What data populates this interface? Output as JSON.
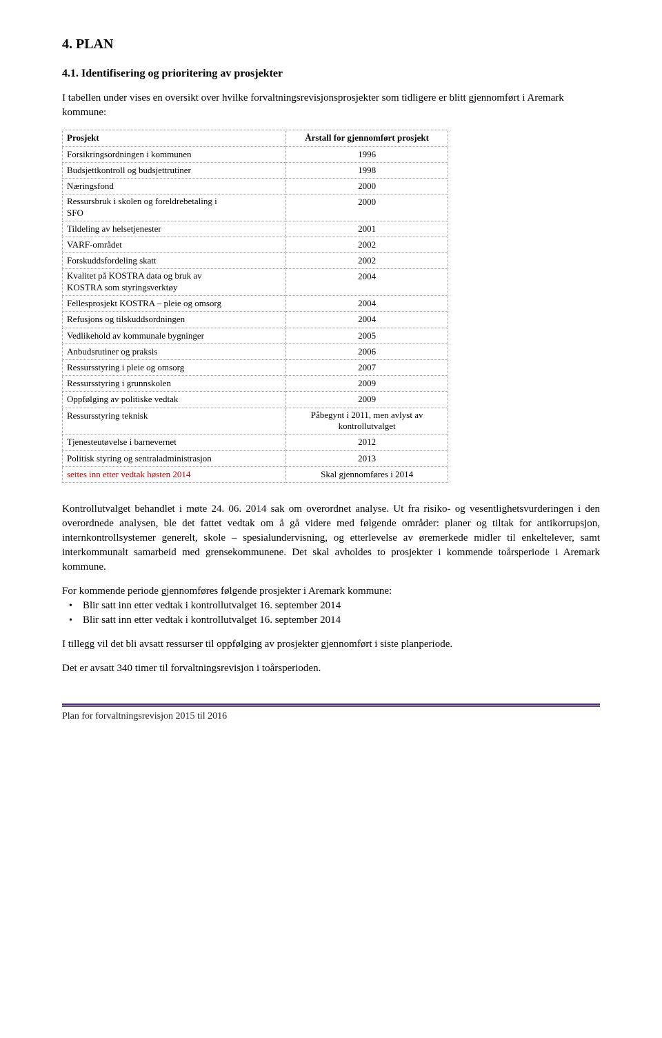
{
  "heading_main": "4.   PLAN",
  "heading_sub": "4.1. Identifisering og prioritering av prosjekter",
  "intro_text": "I tabellen under vises en oversikt over hvilke forvaltningsrevisjonsprosjekter som tidligere er blitt gjennomført i Aremark kommune:",
  "table": {
    "header_left": "Prosjekt",
    "header_right": "Årstall for gjennomført prosjekt",
    "rows": [
      {
        "left": "Forsikringsordningen i kommunen",
        "right": "1996"
      },
      {
        "left": "Budsjettkontroll og budsjettrutiner",
        "right": "1998"
      },
      {
        "left": "Næringsfond",
        "right": "2000"
      },
      {
        "left": "Ressursbruk i skolen og foreldrebetaling i\nSFO",
        "right": "2000"
      },
      {
        "left": "Tildeling av helsetjenester",
        "right": "2001"
      },
      {
        "left": "VARF-området",
        "right": "2002"
      },
      {
        "left": "Forskuddsfordeling skatt",
        "right": "2002"
      },
      {
        "left": "Kvalitet på KOSTRA data og bruk av\nKOSTRA som styringsverktøy",
        "right": "2004"
      },
      {
        "left": "Fellesprosjekt KOSTRA – pleie og omsorg",
        "right": "2004"
      },
      {
        "left": "Refusjons og tilskuddsordningen",
        "right": "2004"
      },
      {
        "left": "Vedlikehold av kommunale bygninger",
        "right": "2005"
      },
      {
        "left": "Anbudsrutiner og praksis",
        "right": "2006"
      },
      {
        "left": "Ressursstyring i pleie og omsorg",
        "right": "2007"
      },
      {
        "left": "Ressursstyring i grunnskolen",
        "right": "2009"
      },
      {
        "left": "Oppfølging av politiske vedtak",
        "right": "2009"
      },
      {
        "left": "Ressursstyring teknisk",
        "right": "Påbegynt i 2011, men avlyst av\nkontrollutvalget"
      },
      {
        "left": "Tjenesteutøvelse i barnevernet",
        "right": "2012"
      },
      {
        "left": "Politisk styring og sentraladministrasjon",
        "right": "2013"
      },
      {
        "left": "settes inn etter vedtak høsten 2014",
        "right": "Skal gjennomføres i 2014",
        "red": true
      }
    ]
  },
  "para1": "Kontrollutvalget behandlet i møte 24. 06. 2014 sak om overordnet analyse. Ut fra risiko- og vesentlighetsvurderingen i den overordnede analysen, ble det fattet vedtak om å gå videre med følgende områder: planer og tiltak for antikorrupsjon, internkontrollsystemer generelt, skole – spesialundervisning, og etterlevelse av øremerkede midler til enkeltelever, samt interkommunalt samarbeid med grensekommunene. Det skal avholdes to prosjekter i kommende toårsperiode i Aremark kommune.",
  "para2_lead": "For kommende periode gjennomføres følgende prosjekter i Aremark kommune:",
  "bullets": [
    "Blir satt inn etter vedtak i kontrollutvalget 16. september 2014",
    "Blir satt inn etter vedtak i kontrollutvalget 16. september 2014"
  ],
  "para3": "I tillegg vil det bli avsatt ressurser til oppfølging av prosjekter gjennomført i siste planperiode.",
  "para4": "Det er avsatt 340 timer til forvaltningsrevisjon i toårsperioden.",
  "footer": "Plan for forvaltningsrevisjon 2015 til 2016",
  "colors": {
    "red": "#c00000",
    "border": "#999999",
    "footer_rule": "#4f2d7f",
    "text": "#000000",
    "background": "#ffffff"
  }
}
